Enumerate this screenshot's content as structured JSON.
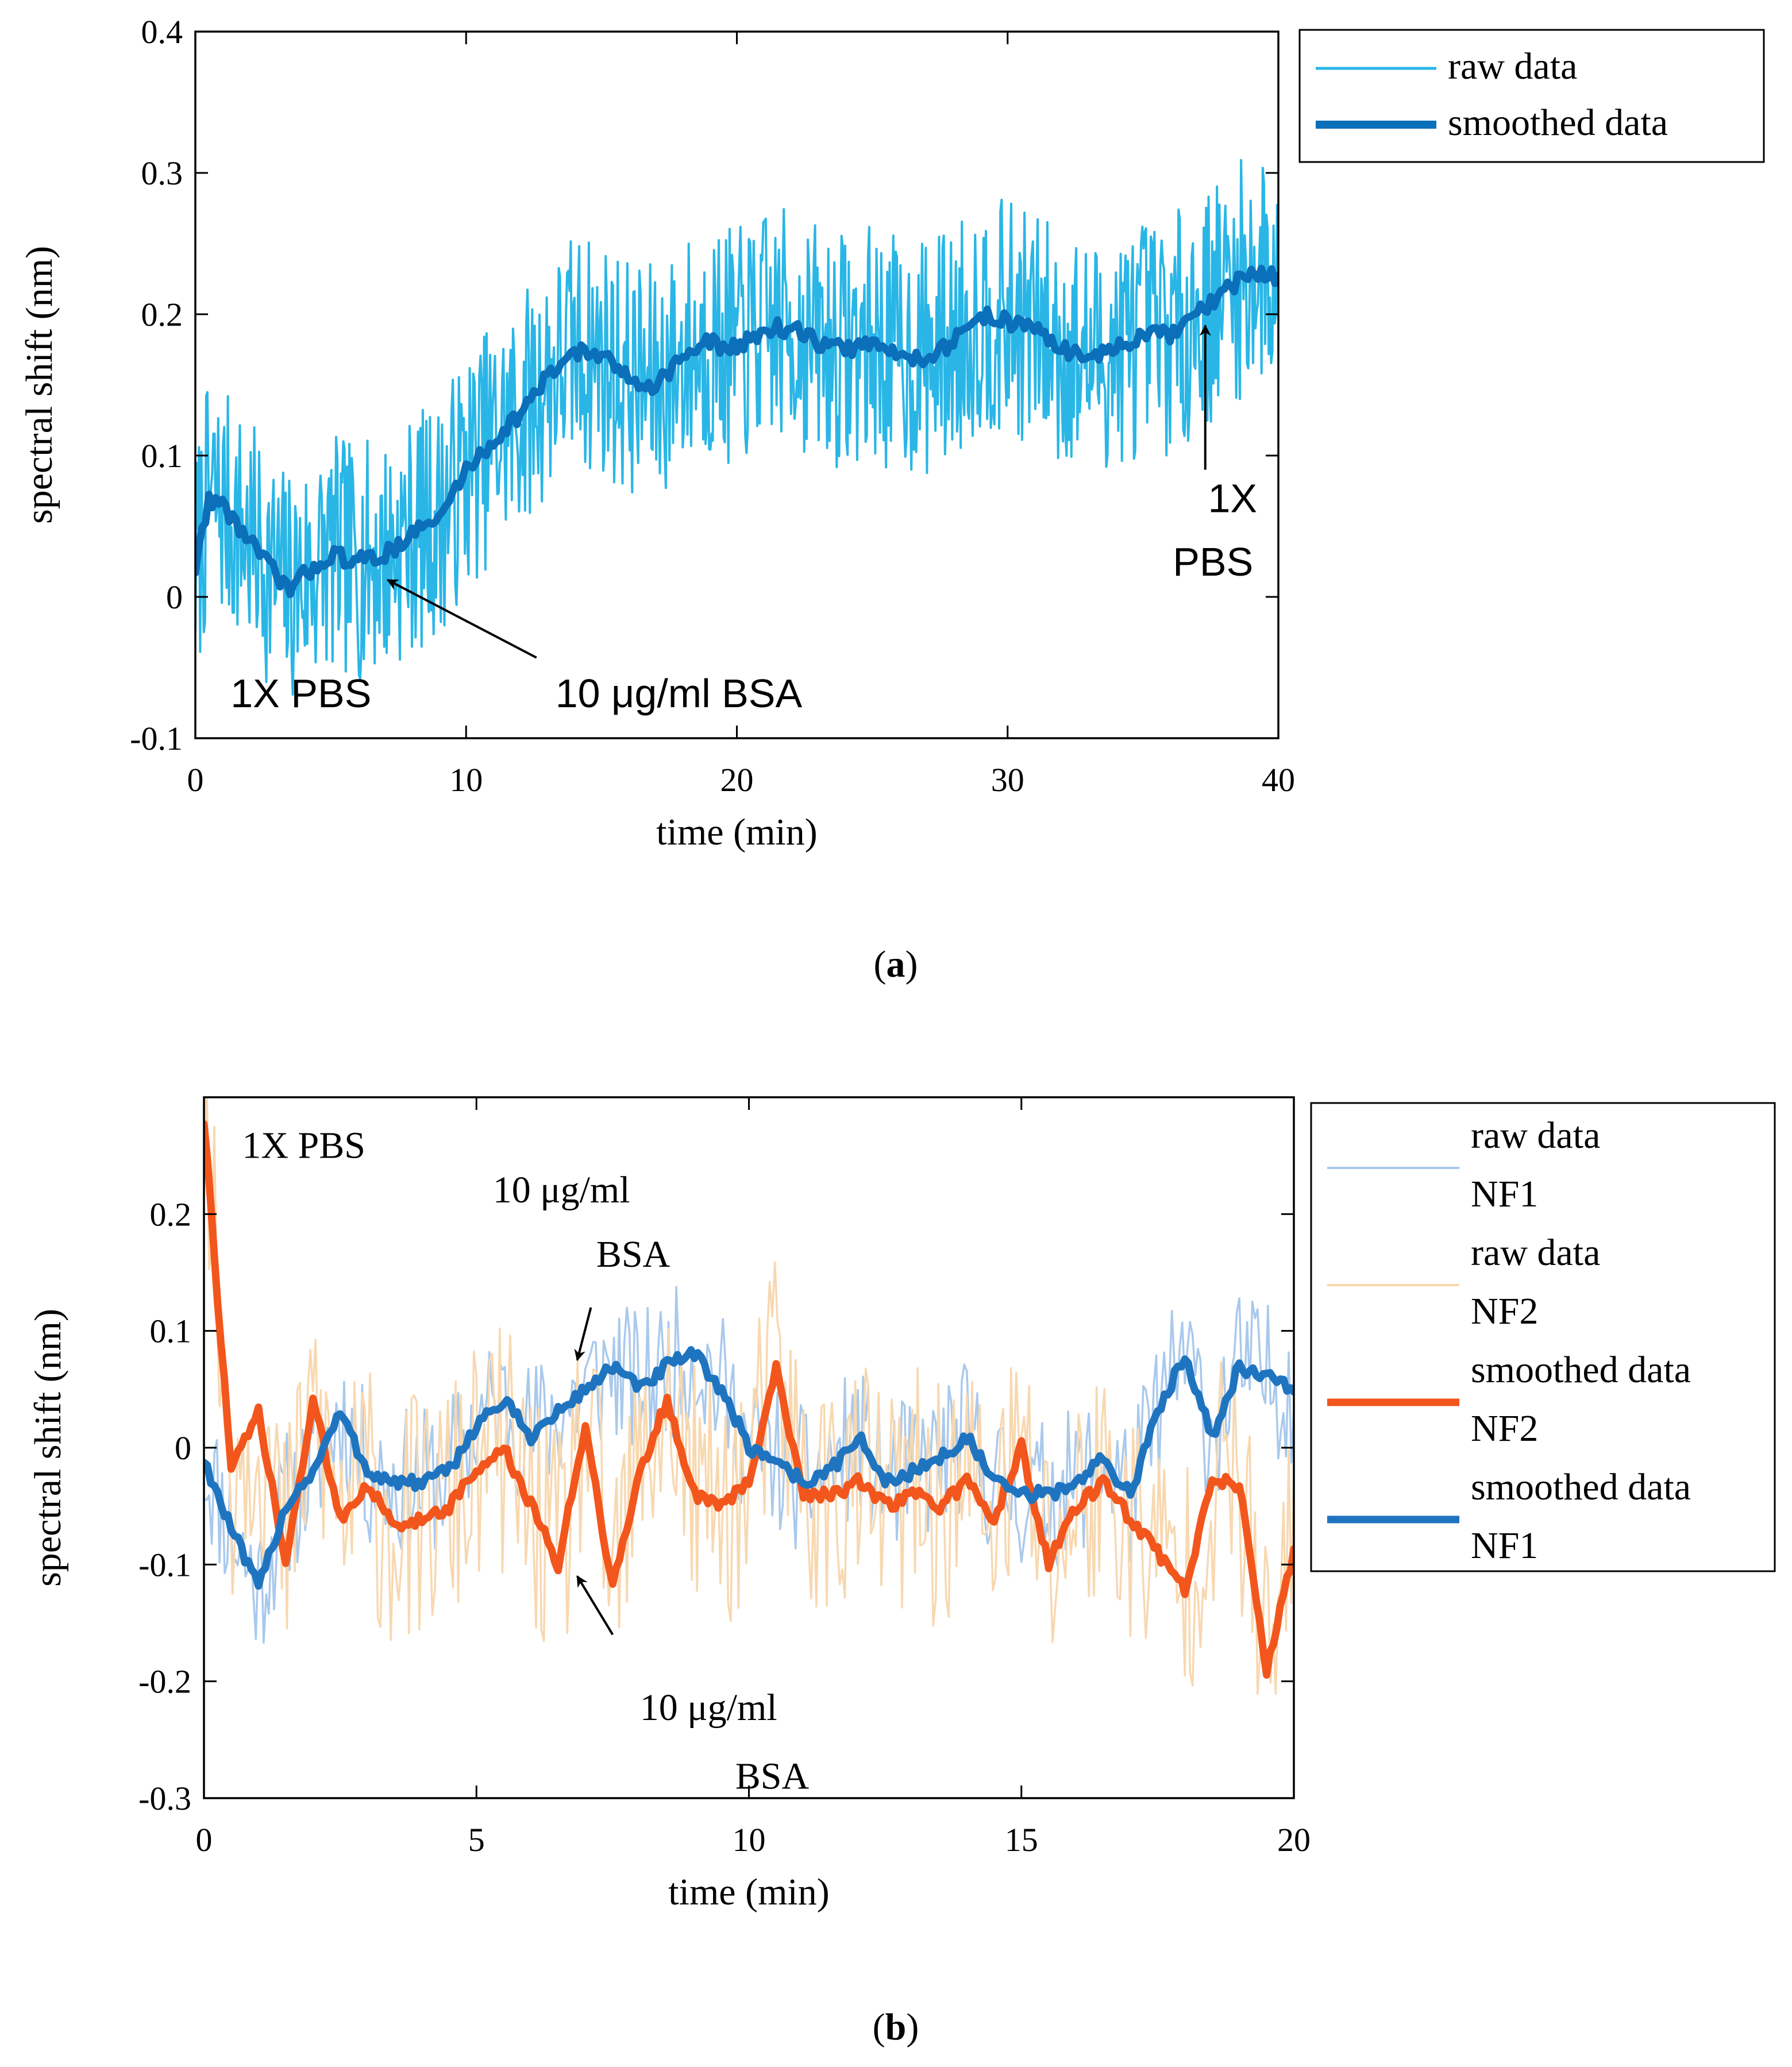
{
  "colors": {
    "raw_a": "#29b6e6",
    "smooth_a": "#0b6fba",
    "raw_nf1": "#a9c9ec",
    "raw_nf2": "#f8d8b0",
    "smooth_nf2": "#f2561c",
    "smooth_nf1": "#1f74c0",
    "arrow": "#000000"
  },
  "captions": {
    "a": "(a)",
    "b": "(b)"
  },
  "chart_data": [
    {
      "id": "a",
      "type": "line",
      "xlabel": "time (min)",
      "ylabel": "spectral shift (nm)",
      "xlim": [
        0,
        40
      ],
      "ylim": [
        -0.1,
        0.4
      ],
      "xticks": [
        0,
        10,
        20,
        30,
        40
      ],
      "xtick_labels": [
        "0",
        "10",
        "20",
        "30",
        "40"
      ],
      "yticks": [
        -0.1,
        0,
        0.1,
        0.2,
        0.3,
        0.4
      ],
      "ytick_labels": [
        "-0.1",
        "0",
        "0.1",
        "0.2",
        "0.3",
        "0.4"
      ],
      "legend_position": "outside-top-right",
      "series": [
        {
          "name": "raw data",
          "role": "raw",
          "color": "#29b6e6",
          "noise": 0.085,
          "x": [
            0,
            0.5,
            1,
            2,
            3,
            3.5,
            4,
            5,
            6,
            7,
            8,
            9,
            10,
            11,
            12,
            13,
            14,
            15,
            16,
            17,
            18,
            19,
            20,
            21,
            22,
            23,
            24,
            25,
            26,
            27,
            28,
            29,
            30,
            31,
            32,
            33,
            34,
            35,
            36,
            37,
            38,
            39,
            40
          ],
          "y": [
            0.02,
            0.07,
            0.065,
            0.04,
            0.015,
            0.005,
            0.015,
            0.03,
            0.025,
            0.03,
            0.045,
            0.055,
            0.09,
            0.11,
            0.13,
            0.155,
            0.175,
            0.17,
            0.155,
            0.15,
            0.17,
            0.18,
            0.175,
            0.19,
            0.19,
            0.18,
            0.175,
            0.18,
            0.17,
            0.17,
            0.18,
            0.2,
            0.195,
            0.19,
            0.175,
            0.17,
            0.175,
            0.185,
            0.185,
            0.2,
            0.215,
            0.23,
            0.225
          ]
        },
        {
          "name": "smoothed data",
          "role": "smoothed",
          "color": "#0b6fba",
          "x": [
            0,
            0.5,
            1,
            2,
            3,
            3.5,
            4,
            5,
            6,
            7,
            8,
            9,
            10,
            11,
            12,
            13,
            14,
            15,
            16,
            17,
            18,
            19,
            20,
            21,
            22,
            23,
            24,
            25,
            26,
            27,
            28,
            29,
            30,
            31,
            32,
            33,
            34,
            35,
            36,
            37,
            38,
            39,
            40
          ],
          "y": [
            0.02,
            0.07,
            0.065,
            0.04,
            0.015,
            0.005,
            0.015,
            0.03,
            0.025,
            0.03,
            0.045,
            0.055,
            0.09,
            0.11,
            0.13,
            0.155,
            0.175,
            0.17,
            0.155,
            0.15,
            0.17,
            0.18,
            0.175,
            0.19,
            0.19,
            0.18,
            0.175,
            0.18,
            0.17,
            0.17,
            0.18,
            0.2,
            0.195,
            0.19,
            0.175,
            0.17,
            0.175,
            0.185,
            0.185,
            0.2,
            0.215,
            0.23,
            0.225
          ]
        }
      ],
      "annotations": [
        {
          "id": "pbs-start",
          "text": "1X PBS",
          "font": "sans",
          "x": 1.3,
          "y": -0.078
        },
        {
          "id": "bsa",
          "text": "10 μg/ml BSA",
          "font": "sans",
          "x": 13.3,
          "y": -0.078
        },
        {
          "id": "pbs-end-1",
          "text": "1X",
          "font": "sans",
          "x": 37.4,
          "y": 0.06
        },
        {
          "id": "pbs-end-2",
          "text": "PBS",
          "font": "sans",
          "x": 36.1,
          "y": 0.015
        }
      ],
      "arrows": [
        {
          "from": [
            12.6,
            -0.043
          ],
          "to": [
            7.1,
            0.012
          ]
        },
        {
          "from": [
            37.3,
            0.09
          ],
          "to": [
            37.3,
            0.192
          ]
        }
      ]
    },
    {
      "id": "b",
      "type": "line",
      "xlabel": "time (min)",
      "ylabel": "spectral shift (nm)",
      "xlim": [
        0,
        20
      ],
      "ylim": [
        -0.3,
        0.3
      ],
      "xticks": [
        0,
        5,
        10,
        15,
        20
      ],
      "xtick_labels": [
        "0",
        "5",
        "10",
        "15",
        "20"
      ],
      "yticks": [
        -0.3,
        -0.2,
        -0.1,
        0,
        0.1,
        0.2
      ],
      "ytick_labels": [
        "-0.3",
        "-0.2",
        "-0.1",
        "0",
        "0.1",
        "0.2"
      ],
      "legend_position": "outside-top-right",
      "series": [
        {
          "name": "raw data NF1",
          "role": "raw",
          "color": "#a9c9ec",
          "noise": 0.065,
          "x": [
            0,
            0.5,
            1,
            1.5,
            2,
            2.5,
            3,
            3.5,
            4,
            4.5,
            5,
            5.5,
            6,
            6.5,
            7,
            7.5,
            8,
            8.5,
            9,
            9.5,
            10,
            10.5,
            11,
            11.5,
            12,
            12.5,
            13,
            13.5,
            14,
            14.5,
            15,
            15.5,
            16,
            16.5,
            17,
            17.5,
            18,
            18.5,
            19,
            19.5,
            20
          ],
          "y": [
            -0.01,
            -0.07,
            -0.12,
            -0.05,
            -0.02,
            0.03,
            -0.02,
            -0.03,
            -0.03,
            -0.02,
            0.02,
            0.04,
            0.01,
            0.03,
            0.05,
            0.07,
            0.05,
            0.07,
            0.08,
            0.05,
            0.0,
            -0.01,
            -0.03,
            -0.02,
            0.01,
            -0.03,
            -0.02,
            -0.01,
            0.01,
            -0.03,
            -0.04,
            -0.04,
            -0.03,
            -0.01,
            -0.04,
            0.03,
            0.08,
            0.01,
            0.07,
            0.06,
            0.05
          ]
        },
        {
          "name": "raw data NF2",
          "role": "raw",
          "color": "#f8d8b0",
          "noise": 0.11,
          "x": [
            0,
            0.5,
            1,
            1.5,
            2,
            2.5,
            3,
            3.5,
            4,
            4.5,
            5,
            5.5,
            6,
            6.5,
            7,
            7.5,
            8,
            8.5,
            9,
            9.5,
            10,
            10.5,
            11,
            11.5,
            12,
            12.5,
            13,
            13.5,
            14,
            14.5,
            15,
            15.5,
            16,
            16.5,
            17,
            17.5,
            18,
            18.5,
            19,
            19.5,
            20
          ],
          "y": [
            0.28,
            -0.02,
            0.03,
            -0.1,
            0.04,
            -0.06,
            -0.03,
            -0.07,
            -0.06,
            -0.05,
            -0.02,
            0.0,
            -0.05,
            -0.1,
            0.02,
            -0.12,
            -0.02,
            0.04,
            -0.04,
            -0.05,
            -0.03,
            0.07,
            -0.04,
            -0.04,
            -0.03,
            -0.05,
            -0.04,
            -0.05,
            -0.03,
            -0.06,
            0.0,
            -0.1,
            -0.05,
            -0.03,
            -0.06,
            -0.09,
            -0.12,
            -0.03,
            -0.03,
            -0.19,
            -0.09
          ]
        },
        {
          "name": "smoothed data NF2",
          "role": "smoothed",
          "color": "#f2561c",
          "x": [
            0,
            0.5,
            1,
            1.5,
            2,
            2.5,
            3,
            3.5,
            4,
            4.5,
            5,
            5.5,
            6,
            6.5,
            7,
            7.5,
            8,
            8.5,
            9,
            9.5,
            10,
            10.5,
            11,
            11.5,
            12,
            12.5,
            13,
            13.5,
            14,
            14.5,
            15,
            15.5,
            16,
            16.5,
            17,
            17.5,
            18,
            18.5,
            19,
            19.5,
            20
          ],
          "y": [
            0.28,
            -0.02,
            0.03,
            -0.1,
            0.04,
            -0.06,
            -0.03,
            -0.07,
            -0.06,
            -0.05,
            -0.02,
            0.0,
            -0.05,
            -0.1,
            0.02,
            -0.12,
            -0.02,
            0.04,
            -0.04,
            -0.05,
            -0.03,
            0.07,
            -0.04,
            -0.04,
            -0.03,
            -0.05,
            -0.04,
            -0.05,
            -0.03,
            -0.06,
            0.0,
            -0.1,
            -0.05,
            -0.03,
            -0.06,
            -0.09,
            -0.12,
            -0.03,
            -0.03,
            -0.19,
            -0.09
          ]
        },
        {
          "name": "smoothed data NF1",
          "role": "smoothed",
          "color": "#1f74c0",
          "x": [
            0,
            0.5,
            1,
            1.5,
            2,
            2.5,
            3,
            3.5,
            4,
            4.5,
            5,
            5.5,
            6,
            6.5,
            7,
            7.5,
            8,
            8.5,
            9,
            9.5,
            10,
            10.5,
            11,
            11.5,
            12,
            12.5,
            13,
            13.5,
            14,
            14.5,
            15,
            15.5,
            16,
            16.5,
            17,
            17.5,
            18,
            18.5,
            19,
            19.5,
            20
          ],
          "y": [
            -0.01,
            -0.07,
            -0.12,
            -0.05,
            -0.02,
            0.03,
            -0.02,
            -0.03,
            -0.03,
            -0.02,
            0.02,
            0.04,
            0.01,
            0.03,
            0.05,
            0.07,
            0.05,
            0.07,
            0.08,
            0.05,
            0.0,
            -0.01,
            -0.03,
            -0.02,
            0.01,
            -0.03,
            -0.02,
            -0.01,
            0.01,
            -0.03,
            -0.04,
            -0.04,
            -0.03,
            -0.01,
            -0.04,
            0.03,
            0.08,
            0.01,
            0.07,
            0.06,
            0.05
          ]
        }
      ],
      "legend_lines": [
        [
          "raw data",
          "NF1"
        ],
        [
          "raw data",
          "NF2"
        ],
        [
          "smoothed data",
          "NF2"
        ],
        [
          "smoothed data",
          "NF1"
        ]
      ],
      "annotations": [
        {
          "id": "pbs",
          "text": "1X PBS",
          "font": "serif",
          "x": 0.7,
          "y": 0.248
        },
        {
          "id": "bsa-top-1",
          "text": "10 μg/ml",
          "font": "serif",
          "x": 5.3,
          "y": 0.21
        },
        {
          "id": "bsa-top-2",
          "text": "BSA",
          "font": "serif",
          "x": 7.2,
          "y": 0.155
        },
        {
          "id": "bsa-bot-1",
          "text": "10 μg/ml",
          "font": "serif",
          "x": 8.0,
          "y": -0.233
        },
        {
          "id": "bsa-bot-2",
          "text": "BSA",
          "font": "serif",
          "x": 9.75,
          "y": -0.292
        }
      ],
      "arrows": [
        {
          "from": [
            7.1,
            0.12
          ],
          "to": [
            6.85,
            0.075
          ]
        },
        {
          "from": [
            7.5,
            -0.16
          ],
          "to": [
            6.85,
            -0.11
          ]
        }
      ]
    }
  ]
}
